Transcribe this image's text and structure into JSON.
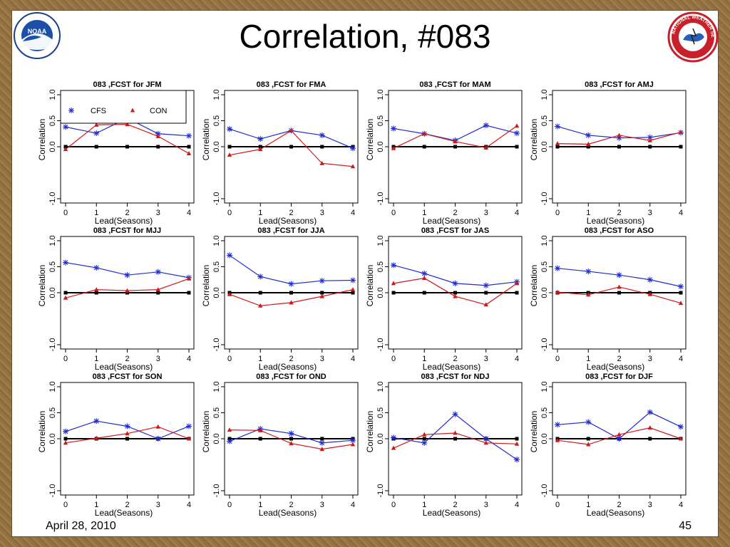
{
  "slide": {
    "title": "Correlation, #083",
    "date": "April 28, 2010",
    "page_number": "45",
    "noaa_logo_text": "NOAA",
    "nws_logo_text": "NATIONAL WEATHER SERVICE"
  },
  "colors": {
    "cfs": "#1f2bd0",
    "con": "#d01818",
    "zero_line": "#000000"
  },
  "chart_data": [
    {
      "type": "line",
      "title": "083 ,FCST for JFM",
      "xlabel": "Lead(Seasons)",
      "ylabel": "Correlation",
      "x": [
        0,
        1,
        2,
        3,
        4
      ],
      "x_ticks": [
        "0",
        "1",
        "2",
        "3",
        "4"
      ],
      "y_ticks": [
        "-1.0",
        "0.0",
        "0.5",
        "1.0"
      ],
      "ylim": [
        -1.0,
        1.0
      ],
      "legend": {
        "position": "top-left",
        "entries": [
          "CFS",
          "CON"
        ]
      },
      "series": [
        {
          "name": "CFS",
          "marker": "asterisk",
          "values": [
            0.38,
            0.26,
            0.55,
            0.25,
            0.21
          ]
        },
        {
          "name": "CON",
          "marker": "triangle",
          "values": [
            -0.05,
            0.42,
            0.43,
            0.2,
            -0.13
          ]
        }
      ]
    },
    {
      "type": "line",
      "title": "083 ,FCST for FMA",
      "xlabel": "Lead(Seasons)",
      "ylabel": "Correlation",
      "x": [
        0,
        1,
        2,
        3,
        4
      ],
      "x_ticks": [
        "0",
        "1",
        "2",
        "3",
        "4"
      ],
      "y_ticks": [
        "-1.0",
        "0.0",
        "0.5",
        "1.0"
      ],
      "ylim": [
        -1.0,
        1.0
      ],
      "series": [
        {
          "name": "CFS",
          "marker": "asterisk",
          "values": [
            0.34,
            0.15,
            0.31,
            0.22,
            -0.03
          ]
        },
        {
          "name": "CON",
          "marker": "triangle",
          "values": [
            -0.16,
            -0.05,
            0.31,
            -0.32,
            -0.38
          ]
        }
      ]
    },
    {
      "type": "line",
      "title": "083 ,FCST for MAM",
      "xlabel": "Lead(Seasons)",
      "ylabel": "Correlation",
      "x": [
        0,
        1,
        2,
        3,
        4
      ],
      "x_ticks": [
        "0",
        "1",
        "2",
        "3",
        "4"
      ],
      "y_ticks": [
        "-1.0",
        "0.0",
        "0.5",
        "1.0"
      ],
      "ylim": [
        -1.0,
        1.0
      ],
      "series": [
        {
          "name": "CFS",
          "marker": "asterisk",
          "values": [
            0.35,
            0.25,
            0.12,
            0.41,
            0.26
          ]
        },
        {
          "name": "CON",
          "marker": "triangle",
          "values": [
            -0.03,
            0.25,
            0.1,
            -0.02,
            0.4
          ]
        }
      ]
    },
    {
      "type": "line",
      "title": "083 ,FCST for AMJ",
      "xlabel": "Lead(Seasons)",
      "ylabel": "Correlation",
      "x": [
        0,
        1,
        2,
        3,
        4
      ],
      "x_ticks": [
        "0",
        "1",
        "2",
        "3",
        "4"
      ],
      "y_ticks": [
        "-1.0",
        "0.0",
        "0.5",
        "1.0"
      ],
      "ylim": [
        -1.0,
        1.0
      ],
      "series": [
        {
          "name": "CFS",
          "marker": "asterisk",
          "values": [
            0.39,
            0.22,
            0.17,
            0.18,
            0.27
          ]
        },
        {
          "name": "CON",
          "marker": "triangle",
          "values": [
            0.06,
            0.05,
            0.22,
            0.12,
            0.28
          ]
        }
      ]
    },
    {
      "type": "line",
      "title": "083 ,FCST for MJJ",
      "xlabel": "Lead(Seasons)",
      "ylabel": "Correlation",
      "x": [
        0,
        1,
        2,
        3,
        4
      ],
      "x_ticks": [
        "0",
        "1",
        "2",
        "3",
        "4"
      ],
      "y_ticks": [
        "-1.0",
        "0.0",
        "0.5",
        "1.0"
      ],
      "ylim": [
        -1.0,
        1.0
      ],
      "series": [
        {
          "name": "CFS",
          "marker": "asterisk",
          "values": [
            0.58,
            0.48,
            0.34,
            0.4,
            0.29
          ]
        },
        {
          "name": "CON",
          "marker": "triangle",
          "values": [
            -0.1,
            0.06,
            0.04,
            0.06,
            0.27
          ]
        }
      ]
    },
    {
      "type": "line",
      "title": "083 ,FCST for JJA",
      "xlabel": "Lead(Seasons)",
      "ylabel": "Correlation",
      "x": [
        0,
        1,
        2,
        3,
        4
      ],
      "x_ticks": [
        "0",
        "1",
        "2",
        "3",
        "4"
      ],
      "y_ticks": [
        "-1.0",
        "0.0",
        "0.5",
        "1.0"
      ],
      "ylim": [
        -1.0,
        1.0
      ],
      "series": [
        {
          "name": "CFS",
          "marker": "asterisk",
          "values": [
            0.72,
            0.31,
            0.17,
            0.23,
            0.24
          ]
        },
        {
          "name": "CON",
          "marker": "triangle",
          "values": [
            -0.03,
            -0.25,
            -0.19,
            -0.07,
            0.06
          ]
        }
      ]
    },
    {
      "type": "line",
      "title": "083 ,FCST for JAS",
      "xlabel": "Lead(Seasons)",
      "ylabel": "Correlation",
      "x": [
        0,
        1,
        2,
        3,
        4
      ],
      "x_ticks": [
        "0",
        "1",
        "2",
        "3",
        "4"
      ],
      "y_ticks": [
        "-1.0",
        "0.0",
        "0.5",
        "1.0"
      ],
      "ylim": [
        -1.0,
        1.0
      ],
      "series": [
        {
          "name": "CFS",
          "marker": "asterisk",
          "values": [
            0.53,
            0.37,
            0.18,
            0.14,
            0.21
          ]
        },
        {
          "name": "CON",
          "marker": "triangle",
          "values": [
            0.18,
            0.28,
            -0.07,
            -0.23,
            0.18
          ]
        }
      ]
    },
    {
      "type": "line",
      "title": "083 ,FCST for ASO",
      "xlabel": "Lead(Seasons)",
      "ylabel": "Correlation",
      "x": [
        0,
        1,
        2,
        3,
        4
      ],
      "x_ticks": [
        "0",
        "1",
        "2",
        "3",
        "4"
      ],
      "y_ticks": [
        "-1.0",
        "0.0",
        "0.5",
        "1.0"
      ],
      "ylim": [
        -1.0,
        1.0
      ],
      "series": [
        {
          "name": "CFS",
          "marker": "asterisk",
          "values": [
            0.47,
            0.41,
            0.34,
            0.25,
            0.12
          ]
        },
        {
          "name": "CON",
          "marker": "triangle",
          "values": [
            0.01,
            -0.04,
            0.11,
            -0.03,
            -0.2
          ]
        }
      ]
    },
    {
      "type": "line",
      "title": "083 ,FCST for SON",
      "xlabel": "Lead(Seasons)",
      "ylabel": "Correlation",
      "x": [
        0,
        1,
        2,
        3,
        4
      ],
      "x_ticks": [
        "0",
        "1",
        "2",
        "3",
        "4"
      ],
      "y_ticks": [
        "-1.0",
        "0.0",
        "0.5",
        "1.0"
      ],
      "ylim": [
        -1.0,
        1.0
      ],
      "series": [
        {
          "name": "CFS",
          "marker": "asterisk",
          "values": [
            0.14,
            0.34,
            0.24,
            0.0,
            0.24
          ]
        },
        {
          "name": "CON",
          "marker": "triangle",
          "values": [
            -0.08,
            0.01,
            0.1,
            0.23,
            0.0
          ]
        }
      ]
    },
    {
      "type": "line",
      "title": "083 ,FCST for OND",
      "xlabel": "Lead(Seasons)",
      "ylabel": "Correlation",
      "x": [
        0,
        1,
        2,
        3,
        4
      ],
      "x_ticks": [
        "0",
        "1",
        "2",
        "3",
        "4"
      ],
      "y_ticks": [
        "-1.0",
        "0.0",
        "0.5",
        "1.0"
      ],
      "ylim": [
        -1.0,
        1.0
      ],
      "series": [
        {
          "name": "CFS",
          "marker": "asterisk",
          "values": [
            -0.05,
            0.19,
            0.1,
            -0.08,
            -0.03
          ]
        },
        {
          "name": "CON",
          "marker": "triangle",
          "values": [
            0.17,
            0.16,
            -0.09,
            -0.2,
            -0.11
          ]
        }
      ]
    },
    {
      "type": "line",
      "title": "083 ,FCST for NDJ",
      "xlabel": "Lead(Seasons)",
      "ylabel": "Correlation",
      "x": [
        0,
        1,
        2,
        3,
        4
      ],
      "x_ticks": [
        "0",
        "1",
        "2",
        "3",
        "4"
      ],
      "y_ticks": [
        "-1.0",
        "0.0",
        "0.5",
        "1.0"
      ],
      "ylim": [
        -1.0,
        1.0
      ],
      "series": [
        {
          "name": "CFS",
          "marker": "asterisk",
          "values": [
            0.02,
            -0.08,
            0.47,
            0.0,
            -0.4
          ]
        },
        {
          "name": "CON",
          "marker": "triangle",
          "values": [
            -0.18,
            0.08,
            0.11,
            -0.08,
            -0.1
          ]
        }
      ]
    },
    {
      "type": "line",
      "title": "083 ,FCST for DJF",
      "xlabel": "Lead(Seasons)",
      "ylabel": "Correlation",
      "x": [
        0,
        1,
        2,
        3,
        4
      ],
      "x_ticks": [
        "0",
        "1",
        "2",
        "3",
        "4"
      ],
      "y_ticks": [
        "-1.0",
        "0.0",
        "0.5",
        "1.0"
      ],
      "ylim": [
        -1.0,
        1.0
      ],
      "series": [
        {
          "name": "CFS",
          "marker": "asterisk",
          "values": [
            0.27,
            0.32,
            0.0,
            0.51,
            0.23
          ]
        },
        {
          "name": "CON",
          "marker": "triangle",
          "values": [
            -0.03,
            -0.11,
            0.08,
            0.21,
            0.0
          ]
        }
      ]
    }
  ]
}
